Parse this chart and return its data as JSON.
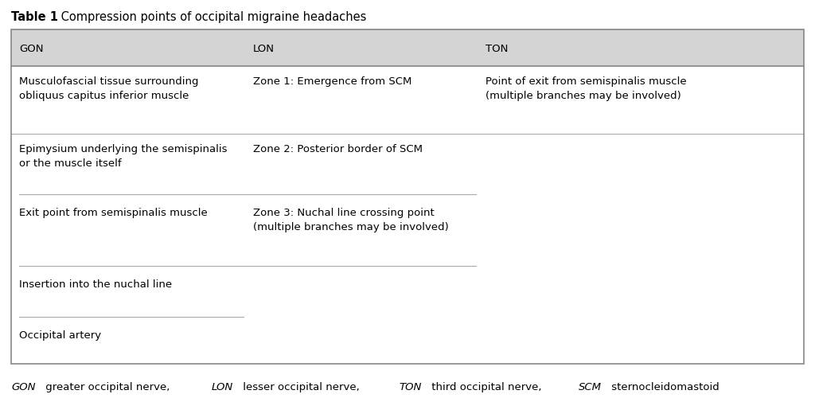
{
  "title_bold": "Table 1",
  "title_regular": " Compression points of occipital migraine headaches",
  "header_bg": "#d4d4d4",
  "table_bg": "#ffffff",
  "border_color": "#888888",
  "row_sep_color": "#aaaaaa",
  "partial_sep_color": "#aaaaaa",
  "text_color": "#000000",
  "columns": [
    "GON",
    "LON",
    "TON"
  ],
  "rows": [
    {
      "gon": "Musculofascial tissue surrounding\nobliquus capitus inferior muscle",
      "lon": "Zone 1: Emergence from SCM",
      "ton": "Point of exit from semispinalis muscle\n(multiple branches may be involved)",
      "full_sep_below": true,
      "partial_seps_below": []
    },
    {
      "gon": "Epimysium underlying the semispinalis\nor the muscle itself",
      "lon": "Zone 2: Posterior border of SCM",
      "ton": "",
      "full_sep_below": false,
      "partial_seps_below": [
        "gon_lon"
      ]
    },
    {
      "gon": "Exit point from semispinalis muscle",
      "lon": "Zone 3: Nuchal line crossing point\n(multiple branches may be involved)",
      "ton": "",
      "full_sep_below": false,
      "partial_seps_below": [
        "gon_lon"
      ]
    },
    {
      "gon": "Insertion into the nuchal line",
      "lon": "",
      "ton": "",
      "full_sep_below": false,
      "partial_seps_below": [
        "gon"
      ]
    },
    {
      "gon": "Occipital artery",
      "lon": "",
      "ton": "",
      "full_sep_below": false,
      "partial_seps_below": []
    }
  ],
  "footnote_parts": [
    {
      "text": "GON",
      "italic": true
    },
    {
      "text": " greater occipital nerve, ",
      "italic": false
    },
    {
      "text": "LON",
      "italic": true
    },
    {
      "text": " lesser occipital nerve, ",
      "italic": false
    },
    {
      "text": "TON",
      "italic": true
    },
    {
      "text": " third occipital nerve, ",
      "italic": false
    },
    {
      "text": "SCM",
      "italic": true
    },
    {
      "text": " sternocleidomastoid",
      "italic": false
    }
  ],
  "font_size": 9.5,
  "header_font_size": 9.5,
  "title_font_size": 10.5,
  "footnote_font_size": 9.5
}
